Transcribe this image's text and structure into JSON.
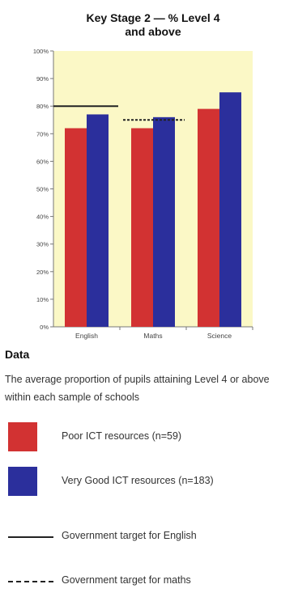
{
  "chart_data": {
    "type": "bar",
    "title_lines": [
      "Key Stage 2 — % Level 4",
      "and above"
    ],
    "categories": [
      "English",
      "Maths",
      "Science"
    ],
    "series": [
      {
        "name": "Poor ICT resources (n=59)",
        "color": "#d23232",
        "values": [
          72,
          72,
          79
        ]
      },
      {
        "name": "Very Good ICT resources (n=183)",
        "color": "#2b2f9c",
        "values": [
          77,
          76,
          85
        ]
      }
    ],
    "ylim": [
      0,
      100
    ],
    "yticks": [
      "0%",
      "10%",
      "20%",
      "30%",
      "40%",
      "50%",
      "60%",
      "70%",
      "80%",
      "90%",
      "100%"
    ],
    "ytick_values": [
      0,
      10,
      20,
      30,
      40,
      50,
      60,
      70,
      80,
      90,
      100
    ],
    "target_lines": [
      {
        "name": "Government target for English",
        "category": "English",
        "value": 80,
        "style": "solid"
      },
      {
        "name": "Government target for maths",
        "category": "Maths",
        "value": 75,
        "style": "dashed"
      }
    ],
    "plot_background": "#fbf8c6",
    "grid": false,
    "legend_position": "below"
  },
  "data_section": {
    "heading": "Data",
    "description": "The average proportion of pupils attaining Level 4 or above within each sample of schools"
  },
  "legend": [
    {
      "label": "Poor ICT resources (n=59)",
      "kind": "swatch",
      "color": "#d23232"
    },
    {
      "label": "Very Good ICT resources (n=183)",
      "kind": "swatch",
      "color": "#2b2f9c"
    },
    {
      "label": "Government target for English",
      "kind": "line",
      "style": "solid"
    },
    {
      "label": "Government target for maths",
      "kind": "line",
      "style": "dashed"
    }
  ]
}
